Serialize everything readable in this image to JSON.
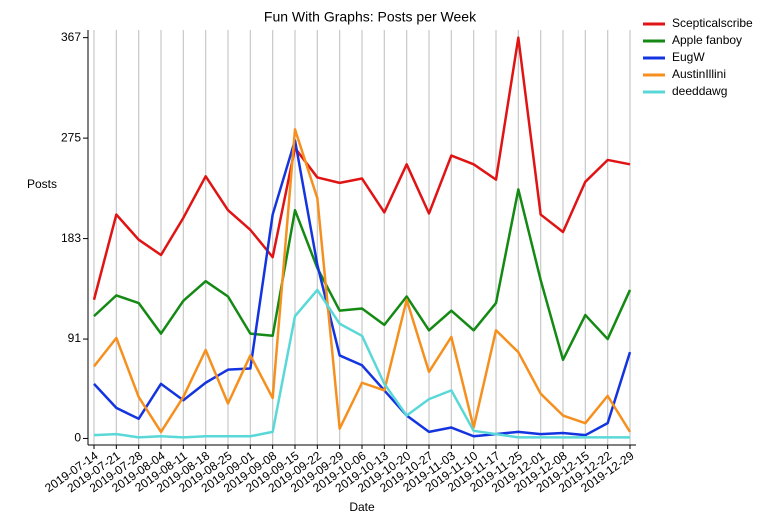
{
  "chart_data": {
    "type": "line",
    "title": "Fun With Graphs: Posts per Week",
    "x_label": "Date",
    "y_label": "Posts",
    "categories": [
      "2019-07-14",
      "2019-07-21",
      "2019-07-28",
      "2019-08-04",
      "2019-08-11",
      "2019-08-18",
      "2019-08-25",
      "2019-09-01",
      "2019-09-08",
      "2019-09-15",
      "2019-09-22",
      "2019-09-29",
      "2019-10-06",
      "2019-10-13",
      "2019-10-20",
      "2019-10-27",
      "2019-11-03",
      "2019-11-10",
      "2019-11-17",
      "2019-11-25",
      "2019-12-01",
      "2019-12-08",
      "2019-12-15",
      "2019-12-22",
      "2019-12-29"
    ],
    "series": [
      {
        "name": "Scepticalscribe",
        "color": "#e01414",
        "values": [
          127,
          205,
          182,
          168,
          202,
          240,
          209,
          191,
          166,
          266,
          239,
          234,
          238,
          207,
          251,
          206,
          259,
          251,
          237,
          367,
          205,
          189,
          235,
          255,
          251
        ]
      },
      {
        "name": "Apple fanboy",
        "color": "#148a14",
        "values": [
          112,
          131,
          124,
          96,
          126,
          144,
          130,
          96,
          94,
          209,
          156,
          117,
          119,
          104,
          130,
          99,
          117,
          99,
          124,
          228,
          145,
          72,
          113,
          91,
          136
        ]
      },
      {
        "name": "EugW",
        "color": "#1434e0",
        "values": [
          50,
          28,
          18,
          50,
          35,
          51,
          63,
          64,
          205,
          273,
          159,
          76,
          67,
          44,
          21,
          6,
          10,
          2,
          4,
          6,
          4,
          5,
          3,
          14,
          79
        ]
      },
      {
        "name": "AustinIllini",
        "color": "#f5901e",
        "values": [
          66,
          92,
          38,
          6,
          38,
          81,
          32,
          76,
          37,
          283,
          220,
          9,
          51,
          44,
          127,
          61,
          93,
          10,
          99,
          79,
          41,
          21,
          14,
          39,
          6
        ]
      },
      {
        "name": "deeddawg",
        "color": "#5ad8d8",
        "values": [
          3,
          4,
          1,
          2,
          1,
          2,
          2,
          2,
          6,
          112,
          136,
          105,
          94,
          50,
          21,
          36,
          44,
          7,
          4,
          1,
          1,
          1,
          1,
          1,
          1
        ]
      }
    ],
    "ylim": [
      -6,
      374
    ],
    "yticks": [
      0,
      91,
      183,
      275,
      367
    ],
    "grid": true,
    "legend": "upper right outside"
  }
}
